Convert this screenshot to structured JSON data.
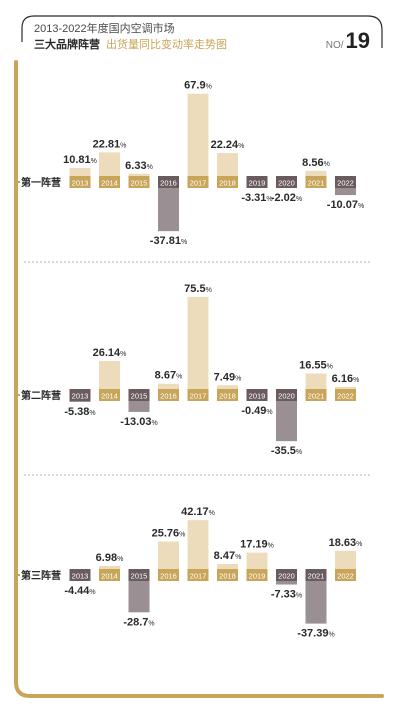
{
  "header": {
    "line1": "2013-2022年度国内空调市场",
    "line2": "三大品牌阵营",
    "line2_sub": "出货量同比变动率走势图",
    "issue_label": "NO/",
    "issue_number": "19"
  },
  "colors": {
    "frame": "#c9a55a",
    "positive_bar": "#ecdcbc",
    "negative_bar": "#9a9093",
    "tag_gold": "#c9a55a",
    "tag_dark": "#6a5b5e",
    "text": "#2a2a2a"
  },
  "chart_data": [
    {
      "type": "bar",
      "row_label": "第一阵营",
      "categories": [
        "2013",
        "2014",
        "2015",
        "2016",
        "2017",
        "2018",
        "2019",
        "2020",
        "2021",
        "2022"
      ],
      "values": [
        10.81,
        22.81,
        6.33,
        -37.81,
        67.9,
        22.24,
        -3.31,
        -2.02,
        8.56,
        -10.07
      ],
      "labels": [
        "10.81",
        "22.81",
        "6.33",
        "-37.81",
        "67.9",
        "22.24",
        "-3.31",
        "-2.02",
        "8.56",
        "-10.07"
      ],
      "unit": "%"
    },
    {
      "type": "bar",
      "row_label": "第二阵营",
      "categories": [
        "2013",
        "2014",
        "2015",
        "2016",
        "2017",
        "2018",
        "2019",
        "2020",
        "2021",
        "2022"
      ],
      "values": [
        -5.38,
        26.14,
        -13.03,
        8.67,
        75.5,
        7.49,
        -0.49,
        -35.5,
        16.55,
        6.16
      ],
      "labels": [
        "-5.38",
        "26.14",
        "-13.03",
        "8.67",
        "75.5",
        "7.49",
        "-0.49",
        "-35.5",
        "16.55",
        "6.16"
      ],
      "unit": "%"
    },
    {
      "type": "bar",
      "row_label": "第三阵营",
      "categories": [
        "2013",
        "2014",
        "2015",
        "2016",
        "2017",
        "2018",
        "2019",
        "2020",
        "2021",
        "2022"
      ],
      "values": [
        -4.44,
        6.98,
        -28.7,
        25.76,
        42.17,
        8.47,
        17.19,
        -7.33,
        -37.39,
        18.63
      ],
      "labels": [
        "-4.44",
        "6.98",
        "-28.7",
        "25.76",
        "42.17",
        "8.47",
        "17.19",
        "-7.33",
        "-37.39",
        "18.63"
      ],
      "unit": "%"
    }
  ]
}
